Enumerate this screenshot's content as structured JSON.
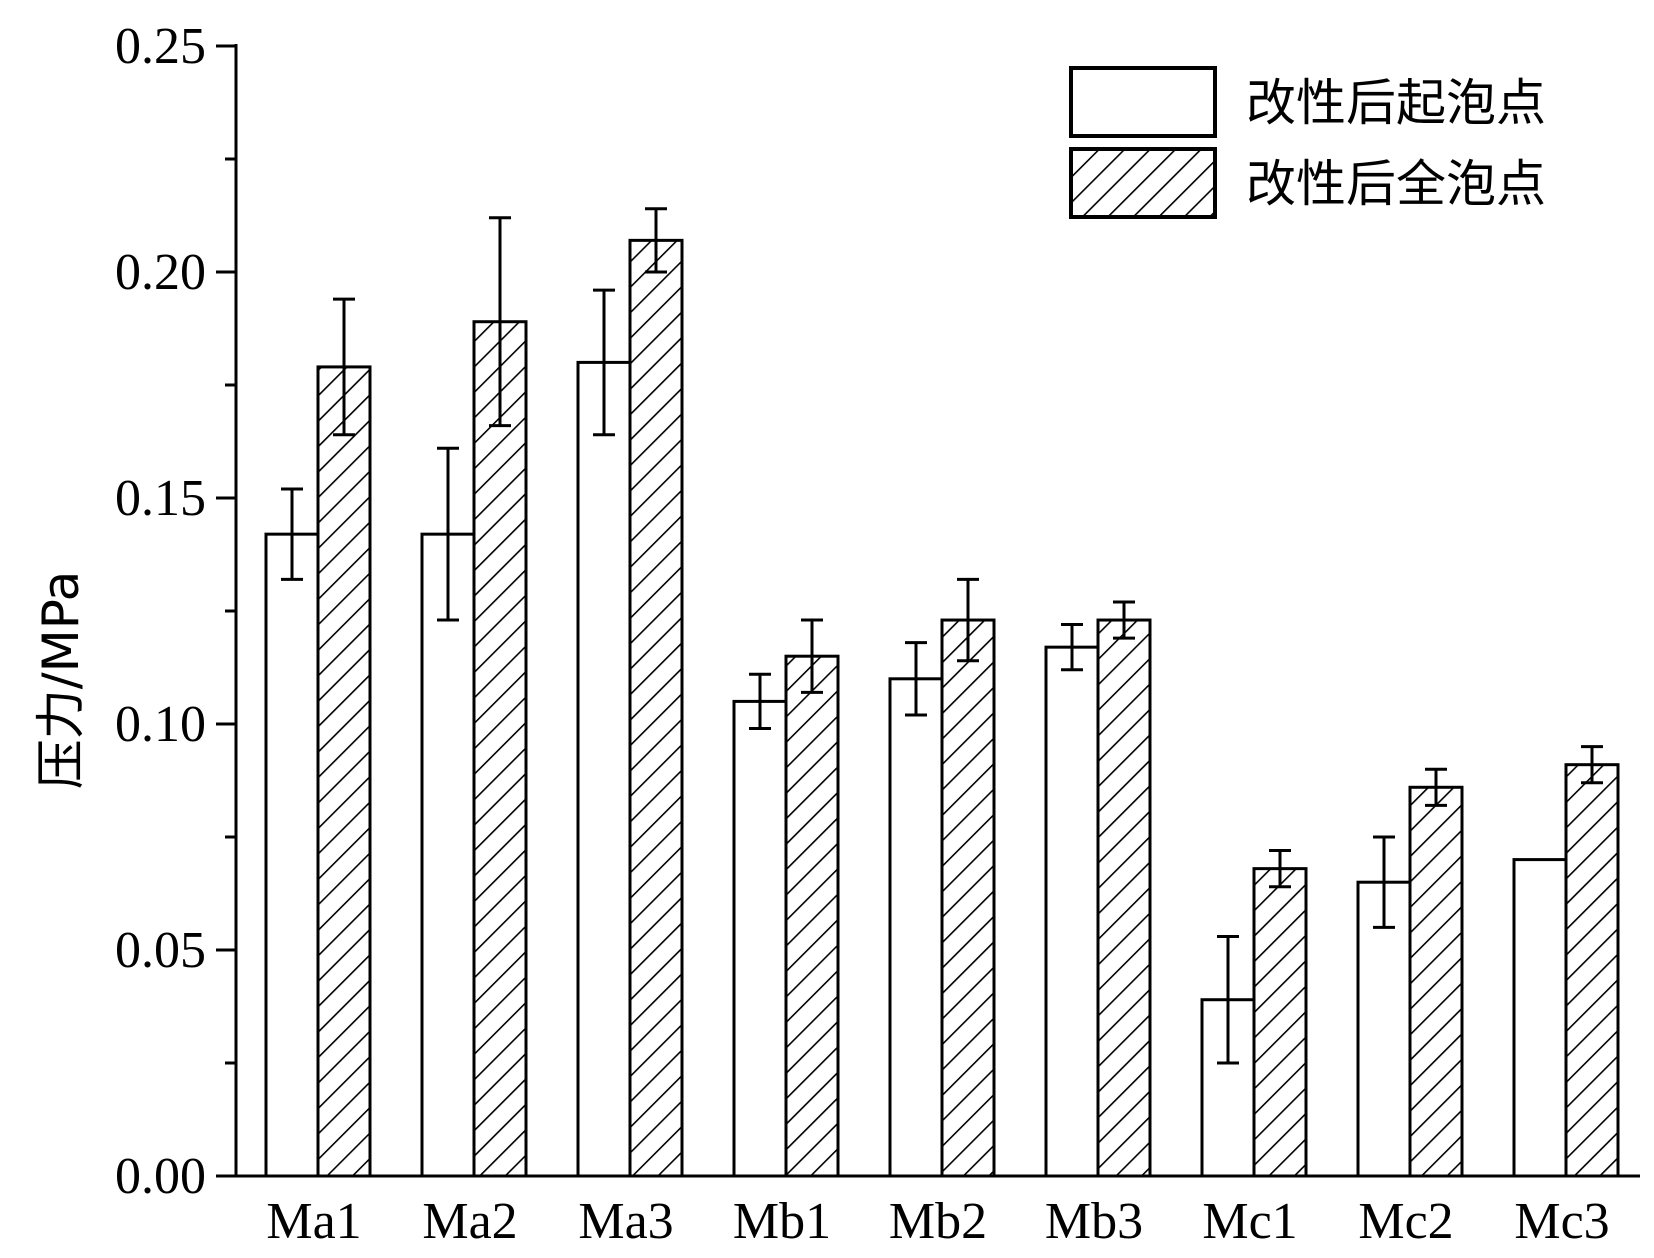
{
  "chart_data": {
    "type": "bar",
    "ylabel": "压力/MPa",
    "xlabel": "",
    "ylim": [
      0,
      0.25
    ],
    "yticks": [
      "0.00",
      "0.05",
      "0.10",
      "0.15",
      "0.20",
      "0.25"
    ],
    "categories": [
      "Ma1",
      "Ma2",
      "Ma3",
      "Mb1",
      "Mb2",
      "Mb3",
      "Mc1",
      "Mc2",
      "Mc3"
    ],
    "series": [
      {
        "name": "改性后起泡点",
        "fill": "#ffffff",
        "values": [
          0.142,
          0.142,
          0.18,
          0.105,
          0.11,
          0.117,
          0.039,
          0.065,
          0.07
        ],
        "errors": [
          0.01,
          0.019,
          0.016,
          0.006,
          0.008,
          0.005,
          0.014,
          0.01,
          0
        ]
      },
      {
        "name": "改性后全泡点",
        "fill": "hatch",
        "values": [
          0.179,
          0.189,
          0.207,
          0.115,
          0.123,
          0.123,
          0.068,
          0.086,
          0.091
        ],
        "errors": [
          0.015,
          0.023,
          0.007,
          0.008,
          0.009,
          0.004,
          0.004,
          0.004,
          0.004
        ]
      }
    ],
    "legend_position": "top-right",
    "grid": false
  }
}
